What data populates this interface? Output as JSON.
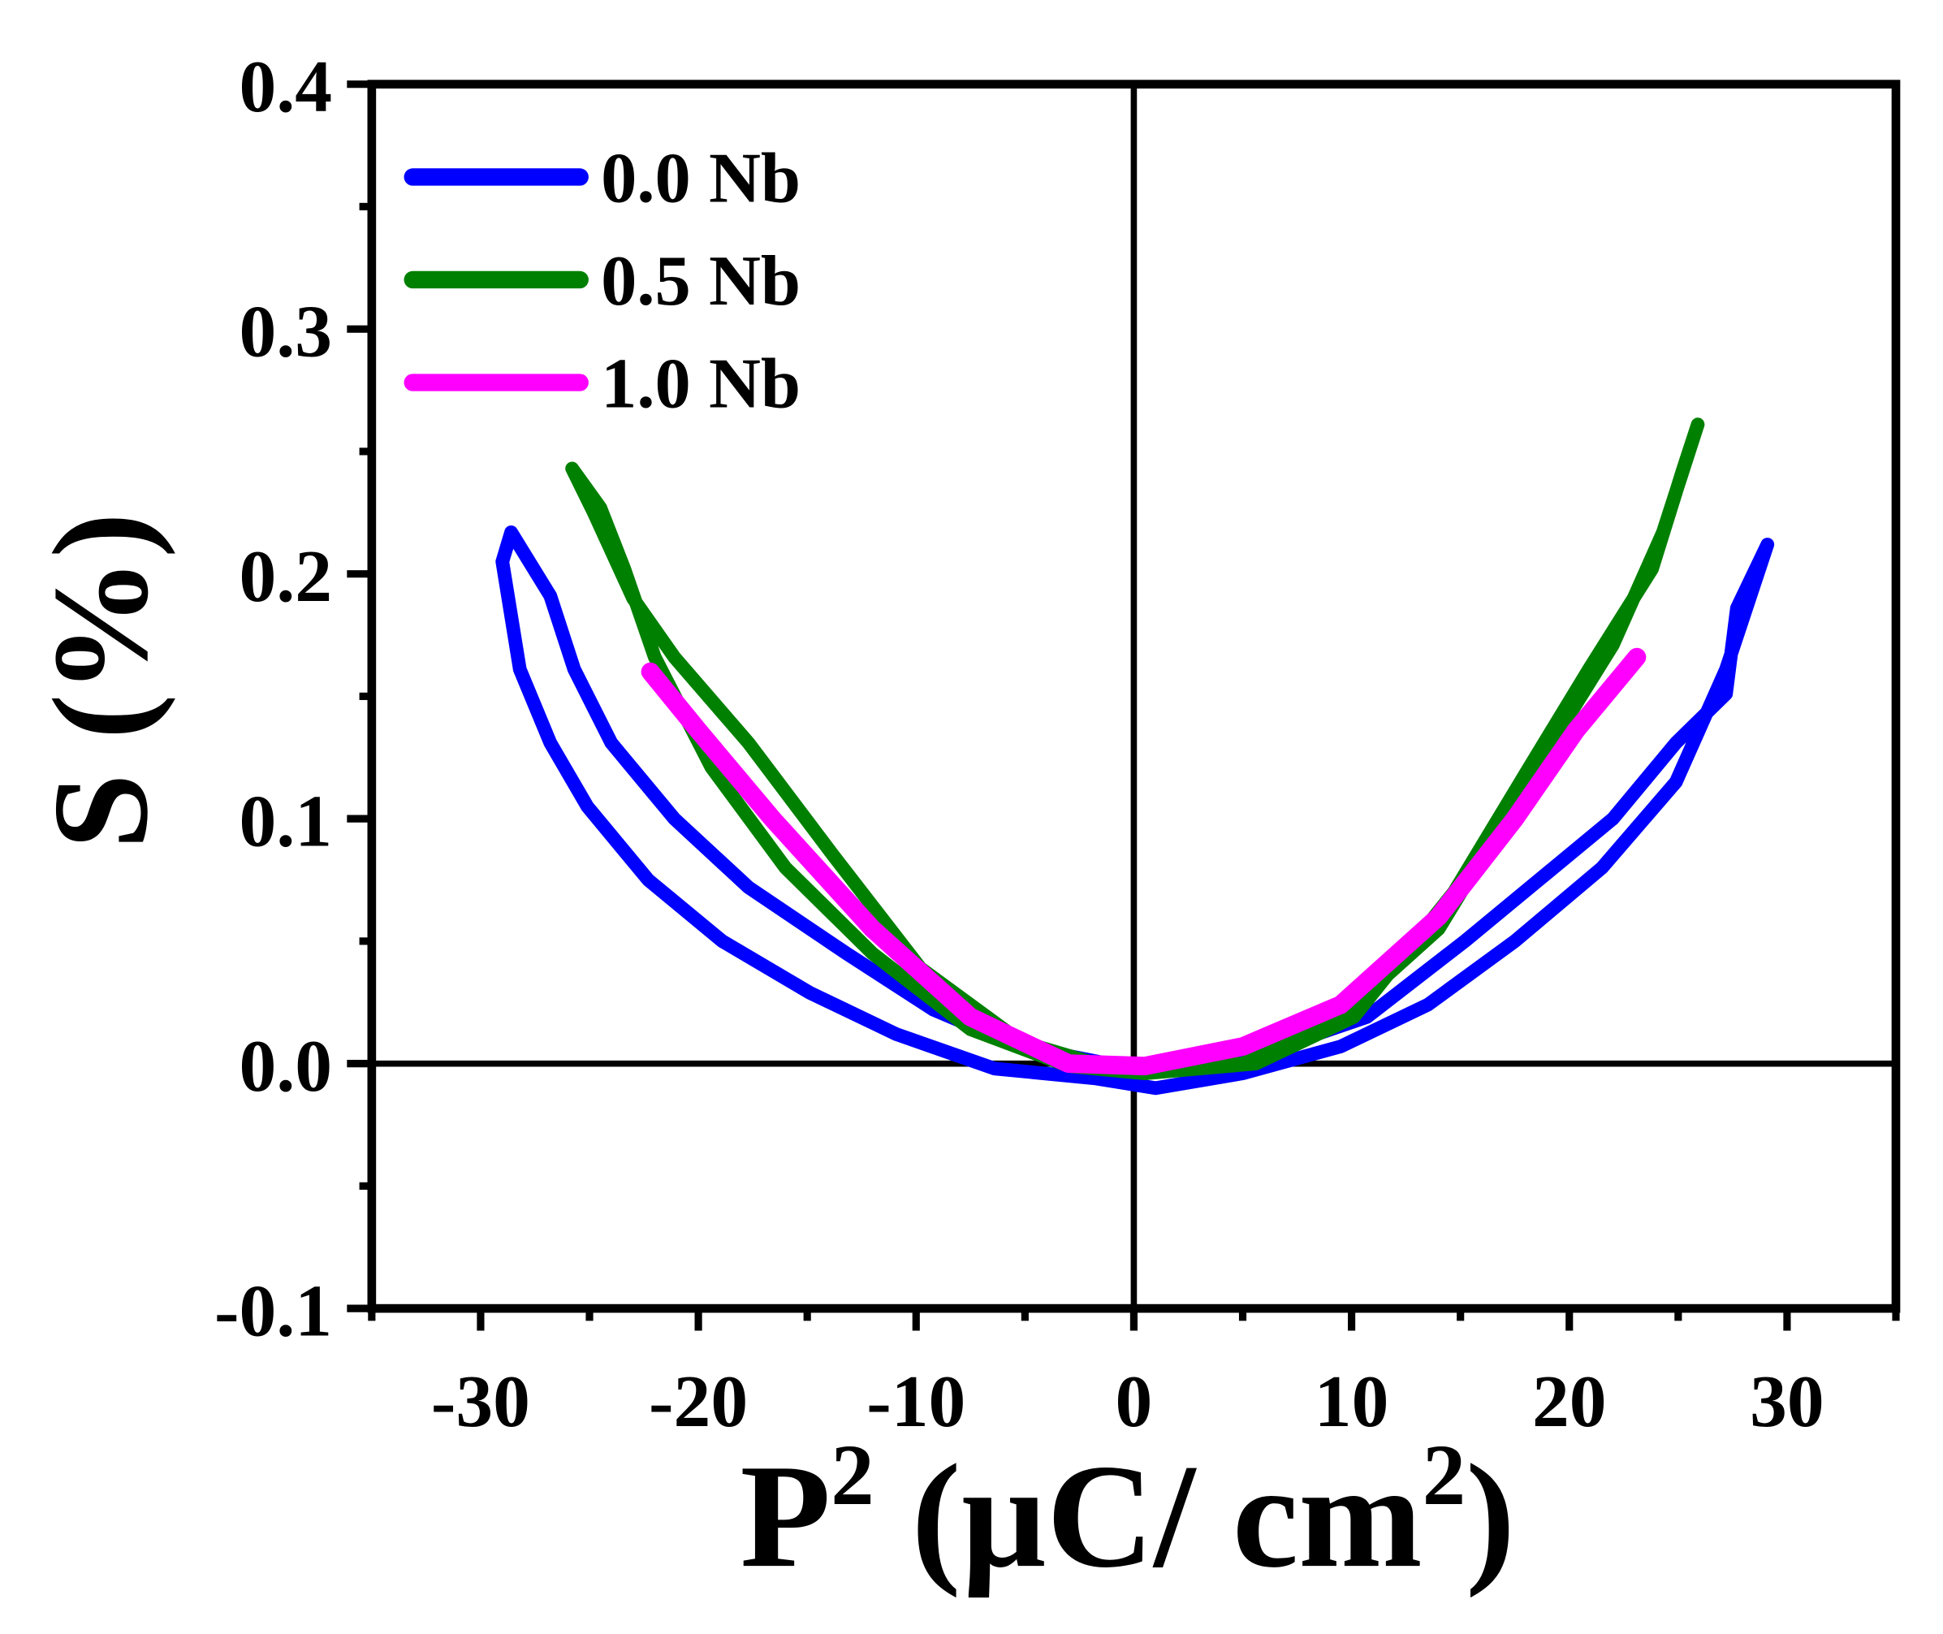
{
  "chart_data": {
    "type": "line",
    "title": "",
    "xlabel": "P",
    "xlabel_sup": "2",
    "xlabel_unit": " (µC/ cm",
    "xlabel_unit_sup": "2",
    "xlabel_close": ")",
    "ylabel": "S (%)",
    "xlim": [
      -35,
      35
    ],
    "ylim": [
      -0.1,
      0.4
    ],
    "xticks": [
      -30,
      -20,
      -10,
      0,
      10,
      20,
      30
    ],
    "xtick_labels": [
      "-30",
      "-20",
      "-10",
      "0",
      "10",
      "20",
      "30"
    ],
    "yticks": [
      -0.1,
      0.0,
      0.1,
      0.2,
      0.3,
      0.4
    ],
    "ytick_labels": [
      "-0.1",
      "0.0",
      "0.1",
      "0.2",
      "0.3",
      "0.4"
    ],
    "grid": false,
    "legend_position": "top-left",
    "zero_lines": true,
    "series": [
      {
        "name": "0.0 Nb",
        "color": "#0000ff",
        "points": [
          [
            -1.2,
            0
          ],
          [
            -5.2,
            0.007
          ],
          [
            -9.2,
            0.022
          ],
          [
            -13.2,
            0.045
          ],
          [
            -17.7,
            0.072
          ],
          [
            -21.1,
            0.1
          ],
          [
            -24,
            0.131
          ],
          [
            -25.7,
            0.161
          ],
          [
            -26.8,
            0.191
          ],
          [
            -28.6,
            0.217
          ],
          [
            -29,
            0.205
          ],
          [
            -28.2,
            0.161
          ],
          [
            -26.8,
            0.131
          ],
          [
            -25.1,
            0.105
          ],
          [
            -22.3,
            0.075
          ],
          [
            -18.9,
            0.05
          ],
          [
            -14.9,
            0.029
          ],
          [
            -10.9,
            0.012
          ],
          [
            -6.4,
            -0.002
          ],
          [
            -1.8,
            -0.006
          ],
          [
            1,
            -0.01
          ],
          [
            5,
            -0.004
          ],
          [
            9.5,
            0.007
          ],
          [
            13.5,
            0.024
          ],
          [
            17.5,
            0.05
          ],
          [
            21.5,
            0.08
          ],
          [
            24.9,
            0.115
          ],
          [
            27.2,
            0.161
          ],
          [
            29.1,
            0.212
          ],
          [
            27.7,
            0.186
          ],
          [
            27.2,
            0.151
          ],
          [
            24.9,
            0.131
          ],
          [
            22,
            0.1
          ],
          [
            18.6,
            0.075
          ],
          [
            15.2,
            0.05
          ],
          [
            10.7,
            0.019
          ],
          [
            6.1,
            0.005
          ],
          [
            1,
            0
          ]
        ]
      },
      {
        "name": "0.5 Nb",
        "color": "#008000",
        "points": [
          [
            0.5,
            -0.004
          ],
          [
            -3,
            -0.001
          ],
          [
            -7.5,
            0.014
          ],
          [
            -12,
            0.045
          ],
          [
            -16,
            0.08
          ],
          [
            -19.4,
            0.121
          ],
          [
            -22,
            0.166
          ],
          [
            -23.4,
            0.202
          ],
          [
            -24.5,
            0.227
          ],
          [
            -25.8,
            0.243
          ],
          [
            -24.8,
            0.225
          ],
          [
            -23,
            0.19
          ],
          [
            -21.1,
            0.166
          ],
          [
            -17.7,
            0.131
          ],
          [
            -13.8,
            0.085
          ],
          [
            -9.8,
            0.039
          ],
          [
            -5.2,
            0.009
          ],
          [
            -1,
            -0.002
          ],
          [
            5,
            0
          ],
          [
            9.5,
            0.019
          ],
          [
            14,
            0.055
          ],
          [
            16.4,
            0.09
          ],
          [
            19.2,
            0.131
          ],
          [
            22,
            0.171
          ],
          [
            24.3,
            0.217
          ],
          [
            25.9,
            0.261
          ],
          [
            25.2,
            0.242
          ],
          [
            23.8,
            0.202
          ],
          [
            20.9,
            0.161
          ],
          [
            18.1,
            0.12
          ],
          [
            14.7,
            0.07
          ],
          [
            10.1,
            0.019
          ],
          [
            5.6,
            0
          ],
          [
            0.5,
            -0.004
          ]
        ]
      },
      {
        "name": "1.0 Nb",
        "color": "#ff00ff",
        "points": [
          [
            -22.2,
            0.16
          ],
          [
            -20,
            0.136
          ],
          [
            -16.6,
            0.1
          ],
          [
            -12,
            0.055
          ],
          [
            -7.5,
            0.019
          ],
          [
            -3,
            0
          ],
          [
            0.5,
            -0.001
          ],
          [
            5,
            0.007
          ],
          [
            9.5,
            0.024
          ],
          [
            14,
            0.06
          ],
          [
            17.5,
            0.1
          ],
          [
            20.3,
            0.136
          ],
          [
            23.1,
            0.166
          ]
        ]
      }
    ]
  }
}
